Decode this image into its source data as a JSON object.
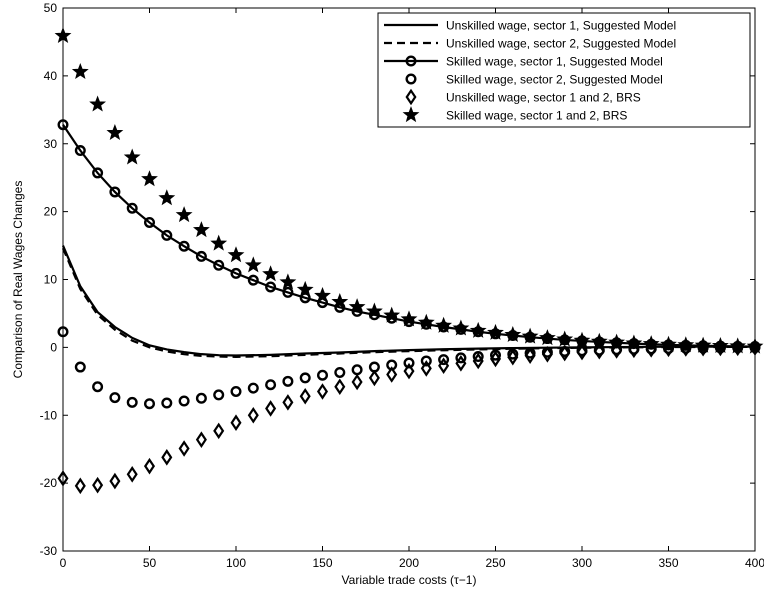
{
  "chart_data": {
    "type": "line",
    "title": "",
    "xlabel": "Variable trade costs (τ−1)",
    "ylabel": "Comparison of Real Wages Changes",
    "xlim": [
      0,
      400
    ],
    "ylim": [
      -30,
      50
    ],
    "xticks": [
      0,
      50,
      100,
      150,
      200,
      250,
      300,
      350,
      400
    ],
    "yticks": [
      -30,
      -20,
      -10,
      0,
      10,
      20,
      30,
      40,
      50
    ],
    "grid": false,
    "legend_position": "top-right",
    "series": [
      {
        "name": "Unskilled wage, sector 1, Suggested Model",
        "style": "solid",
        "marker": "none",
        "x": [
          0,
          10,
          20,
          30,
          40,
          50,
          60,
          70,
          80,
          90,
          100,
          120,
          140,
          160,
          180,
          200,
          220,
          240,
          260,
          280,
          300,
          320,
          340,
          360,
          380,
          400
        ],
        "y": [
          15,
          9,
          5.2,
          3,
          1.4,
          0.3,
          -0.3,
          -0.7,
          -1.0,
          -1.15,
          -1.2,
          -1.1,
          -0.9,
          -0.75,
          -0.55,
          -0.4,
          -0.28,
          -0.18,
          -0.1,
          -0.05,
          0.0,
          0.05,
          0.08,
          0.1,
          0.1,
          0.1
        ]
      },
      {
        "name": "Unskilled wage, sector 2, Suggested Model",
        "style": "dashed",
        "marker": "none",
        "x": [
          0,
          10,
          20,
          30,
          40,
          50,
          60,
          70,
          80,
          90,
          100,
          120,
          140,
          160,
          180,
          200,
          220,
          240,
          260,
          280,
          300,
          320,
          340,
          360,
          380,
          400
        ],
        "y": [
          14.6,
          8.6,
          4.8,
          2.6,
          1.0,
          0.0,
          -0.6,
          -1.0,
          -1.25,
          -1.35,
          -1.4,
          -1.3,
          -1.1,
          -0.9,
          -0.7,
          -0.55,
          -0.42,
          -0.3,
          -0.2,
          -0.12,
          -0.06,
          0.0,
          0.03,
          0.05,
          0.06,
          0.07
        ]
      },
      {
        "name": "Skilled wage, sector 1, Suggested Model",
        "style": "solid",
        "marker": "circle",
        "x": [
          0,
          10,
          20,
          30,
          40,
          50,
          60,
          70,
          80,
          90,
          100,
          110,
          120,
          130,
          140,
          150,
          160,
          170,
          180,
          190,
          200,
          210,
          220,
          230,
          240,
          250,
          260,
          270,
          280,
          290,
          300,
          310,
          320,
          330,
          340,
          350,
          360,
          370,
          380,
          390,
          400
        ],
        "y": [
          32.8,
          29.0,
          25.7,
          22.9,
          20.5,
          18.4,
          16.5,
          14.9,
          13.4,
          12.1,
          10.9,
          9.9,
          8.9,
          8.1,
          7.3,
          6.6,
          5.9,
          5.3,
          4.8,
          4.3,
          3.8,
          3.4,
          3.0,
          2.65,
          2.3,
          2.0,
          1.75,
          1.5,
          1.3,
          1.1,
          0.95,
          0.8,
          0.68,
          0.56,
          0.46,
          0.37,
          0.3,
          0.24,
          0.19,
          0.15,
          0.12
        ]
      },
      {
        "name": "Skilled wage, sector 2, Suggested Model",
        "style": "none",
        "marker": "circle",
        "x": [
          0,
          10,
          20,
          30,
          40,
          50,
          60,
          70,
          80,
          90,
          100,
          110,
          120,
          130,
          140,
          150,
          160,
          170,
          180,
          190,
          200,
          210,
          220,
          230,
          240,
          250,
          260,
          270,
          280,
          290,
          300,
          310,
          320,
          330,
          340,
          350,
          360,
          370,
          380,
          390,
          400
        ],
        "y": [
          2.3,
          -2.9,
          -5.8,
          -7.4,
          -8.1,
          -8.3,
          -8.2,
          -7.9,
          -7.5,
          -7.0,
          -6.5,
          -6.0,
          -5.5,
          -5.0,
          -4.5,
          -4.1,
          -3.7,
          -3.3,
          -2.9,
          -2.6,
          -2.3,
          -2.0,
          -1.8,
          -1.55,
          -1.35,
          -1.15,
          -1.0,
          -0.85,
          -0.72,
          -0.6,
          -0.5,
          -0.42,
          -0.34,
          -0.28,
          -0.22,
          -0.17,
          -0.13,
          -0.1,
          -0.07,
          -0.05,
          -0.03
        ]
      },
      {
        "name": "Unskilled wage, sector 1 and 2, BRS",
        "style": "none",
        "marker": "diamond",
        "x": [
          0,
          10,
          20,
          30,
          40,
          50,
          60,
          70,
          80,
          90,
          100,
          110,
          120,
          130,
          140,
          150,
          160,
          170,
          180,
          190,
          200,
          210,
          220,
          230,
          240,
          250,
          260,
          270,
          280,
          290,
          300,
          310,
          320,
          330,
          340,
          350,
          360,
          370,
          380,
          390,
          400
        ],
        "y": [
          -19.3,
          -20.4,
          -20.3,
          -19.7,
          -18.7,
          -17.5,
          -16.2,
          -14.9,
          -13.6,
          -12.3,
          -11.1,
          -10.0,
          -9.0,
          -8.1,
          -7.2,
          -6.5,
          -5.8,
          -5.1,
          -4.5,
          -4.0,
          -3.5,
          -3.1,
          -2.7,
          -2.35,
          -2.0,
          -1.7,
          -1.45,
          -1.22,
          -1.02,
          -0.85,
          -0.7,
          -0.57,
          -0.46,
          -0.37,
          -0.29,
          -0.22,
          -0.17,
          -0.12,
          -0.09,
          -0.06,
          -0.04
        ]
      },
      {
        "name": "Skilled wage, sector 1 and 2, BRS",
        "style": "none",
        "marker": "star",
        "x": [
          0,
          10,
          20,
          30,
          40,
          50,
          60,
          70,
          80,
          90,
          100,
          110,
          120,
          130,
          140,
          150,
          160,
          170,
          180,
          190,
          200,
          210,
          220,
          230,
          240,
          250,
          260,
          270,
          280,
          290,
          300,
          310,
          320,
          330,
          340,
          350,
          360,
          370,
          380,
          390,
          400
        ],
        "y": [
          45.9,
          40.6,
          35.8,
          31.6,
          28.0,
          24.8,
          22.0,
          19.5,
          17.3,
          15.3,
          13.6,
          12.1,
          10.8,
          9.6,
          8.5,
          7.6,
          6.7,
          5.95,
          5.3,
          4.7,
          4.15,
          3.65,
          3.2,
          2.8,
          2.45,
          2.15,
          1.85,
          1.6,
          1.38,
          1.18,
          1.0,
          0.85,
          0.72,
          0.6,
          0.5,
          0.41,
          0.34,
          0.27,
          0.22,
          0.17,
          0.13
        ]
      }
    ]
  }
}
